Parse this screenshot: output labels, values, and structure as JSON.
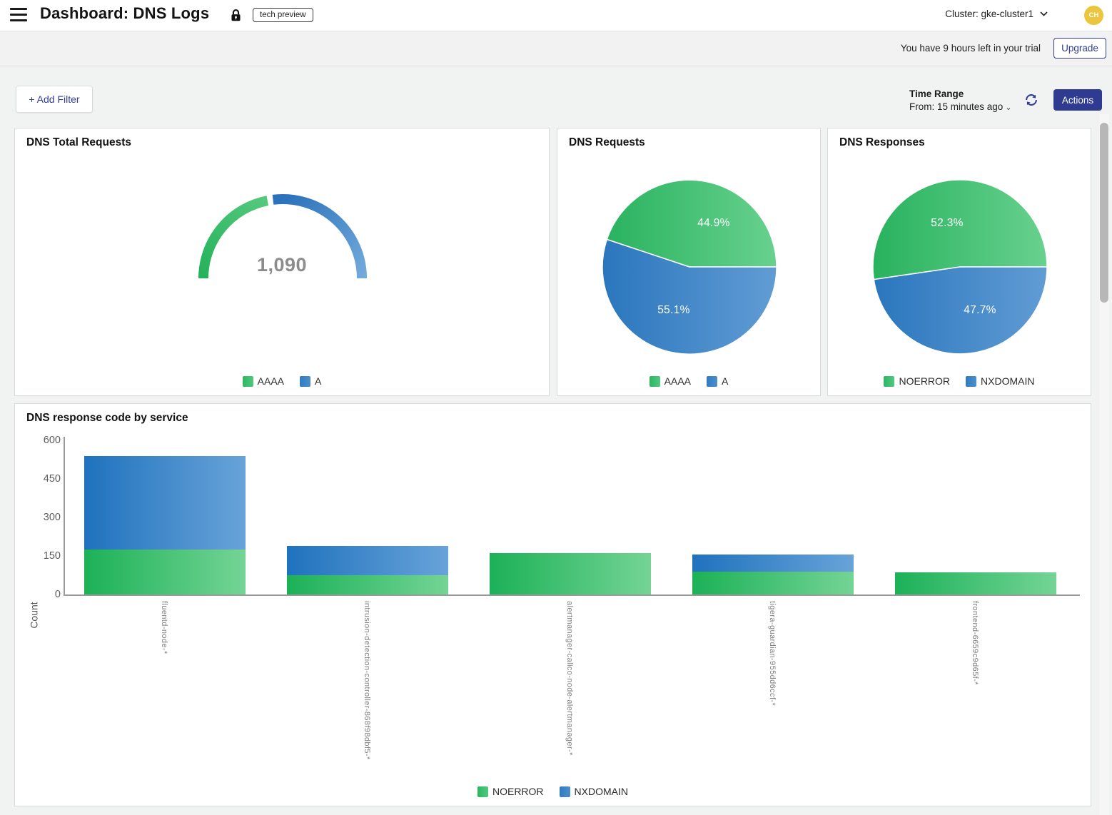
{
  "header": {
    "title": "Dashboard: DNS Logs",
    "tech_preview_label": "tech preview",
    "cluster_label": "Cluster: gke-cluster1",
    "avatar_initials": "CH"
  },
  "trial_banner": {
    "message": "You have 9 hours left in your trial",
    "upgrade_label": "Upgrade"
  },
  "toolbar": {
    "add_filter_label": "+ Add Filter",
    "time_range_label": "Time Range",
    "time_range_value": "From: 15 minutes ago",
    "actions_label": "Actions"
  },
  "colors": {
    "green": "#1cb157",
    "green_light": "#74d495",
    "blue": "#1f72bd",
    "blue_light": "#68a3d9",
    "navy": "#2e3b90",
    "avatar_bg": "#eac53d",
    "gauge_value_gray": "#8c8c8c"
  },
  "chart_data": [
    {
      "type": "gauge",
      "title": "DNS Total Requests",
      "value": 1090,
      "value_display": "1,090",
      "segments": [
        {
          "label": "AAAA",
          "fraction": 0.449,
          "color": "green"
        },
        {
          "label": "A",
          "fraction": 0.551,
          "color": "blue"
        }
      ],
      "legend": [
        "AAAA",
        "A"
      ]
    },
    {
      "type": "pie",
      "title": "DNS Requests",
      "slices": [
        {
          "label": "AAAA",
          "percent": 44.9,
          "display": "44.9%",
          "color": "green"
        },
        {
          "label": "A",
          "percent": 55.1,
          "display": "55.1%",
          "color": "blue"
        }
      ],
      "legend": [
        "AAAA",
        "A"
      ]
    },
    {
      "type": "pie",
      "title": "DNS Responses",
      "slices": [
        {
          "label": "NOERROR",
          "percent": 52.3,
          "display": "52.3%",
          "color": "green"
        },
        {
          "label": "NXDOMAIN",
          "percent": 47.7,
          "display": "47.7%",
          "color": "blue"
        }
      ],
      "legend": [
        "NOERROR",
        "NXDOMAIN"
      ]
    },
    {
      "type": "bar",
      "title": "DNS response code by service",
      "ylabel": "Count",
      "ylim": [
        0,
        600
      ],
      "yticks": [
        0,
        150,
        300,
        450,
        600
      ],
      "grid": false,
      "legend_position": "bottom",
      "categories": [
        "fluentd-node-*",
        "intrusion-detection-controller-868f98dbf5-*",
        "alertmanager-calico-node-alertmanager-*",
        "tigera-guardian-955dd6ccf-*",
        "frontend-6659c9d65f-*"
      ],
      "series": [
        {
          "name": "NOERROR",
          "values": [
            175,
            75,
            160,
            90,
            85
          ]
        },
        {
          "name": "NXDOMAIN",
          "values": [
            365,
            115,
            0,
            65,
            0
          ]
        }
      ]
    }
  ]
}
